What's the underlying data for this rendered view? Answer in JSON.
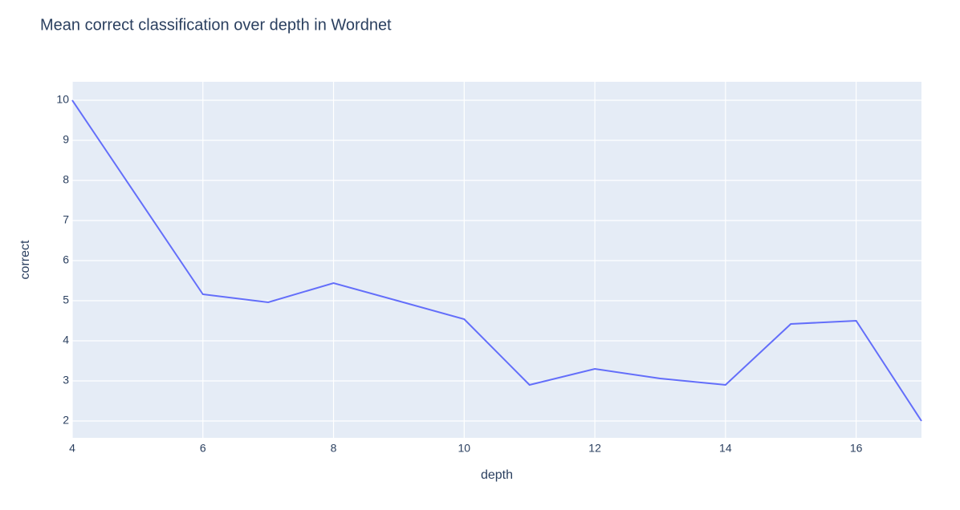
{
  "chart_data": {
    "type": "line",
    "title": "Mean correct classification over depth in Wordnet",
    "x_label": "depth",
    "y_label": "correct",
    "x": [
      4,
      6,
      7,
      8,
      10,
      11,
      12,
      13,
      14,
      15,
      16,
      17
    ],
    "series": [
      {
        "name": "correct",
        "color": "#636efa",
        "values": [
          10,
          5.16,
          4.96,
          5.44,
          4.54,
          2.9,
          3.3,
          3.06,
          2.9,
          4.42,
          4.5,
          2.0
        ]
      }
    ],
    "xlim": [
      4,
      17
    ],
    "xticks": [
      4,
      6,
      8,
      10,
      12,
      14,
      16
    ],
    "ylim": [
      1.58,
      10.46
    ],
    "yticks": [
      2,
      3,
      4,
      5,
      6,
      7,
      8,
      9,
      10
    ],
    "grid": true
  }
}
